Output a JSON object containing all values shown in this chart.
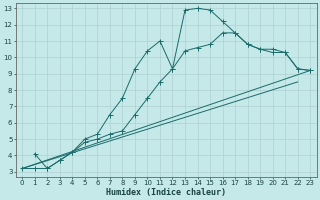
{
  "xlabel": "Humidex (Indice chaleur)",
  "bg_color": "#c5e8e8",
  "line_color": "#1a6b6b",
  "xlim": [
    -0.5,
    23.5
  ],
  "ylim": [
    2.7,
    13.3
  ],
  "xticks": [
    0,
    1,
    2,
    3,
    4,
    5,
    6,
    7,
    8,
    9,
    10,
    11,
    12,
    13,
    14,
    15,
    16,
    17,
    18,
    19,
    20,
    21,
    22,
    23
  ],
  "yticks": [
    3,
    4,
    5,
    6,
    7,
    8,
    9,
    10,
    11,
    12,
    13
  ],
  "grid_color": "#b0d0d0",
  "line1_x": [
    1,
    2,
    3,
    4,
    5,
    6,
    7,
    8,
    9,
    10,
    11,
    12,
    13,
    14,
    15,
    16,
    17,
    18,
    19,
    20,
    21,
    22,
    23
  ],
  "line1_y": [
    4.1,
    3.2,
    3.7,
    4.2,
    5.0,
    5.3,
    6.5,
    7.5,
    9.3,
    10.4,
    11.0,
    9.3,
    12.9,
    13.0,
    12.9,
    12.2,
    11.5,
    10.8,
    10.5,
    10.5,
    10.3,
    9.3,
    9.2
  ],
  "line2_x": [
    0,
    1,
    2,
    3,
    4,
    5,
    6,
    7,
    8,
    9,
    10,
    11,
    12,
    13,
    14,
    15,
    16,
    17,
    18,
    19,
    20,
    21,
    22,
    23
  ],
  "line2_y": [
    3.2,
    3.2,
    3.2,
    3.7,
    4.2,
    4.8,
    5.0,
    5.3,
    5.5,
    6.5,
    7.5,
    8.5,
    9.3,
    10.4,
    10.6,
    10.8,
    11.5,
    11.5,
    10.8,
    10.5,
    10.3,
    10.3,
    9.3,
    9.2
  ],
  "line3_x": [
    0,
    23
  ],
  "line3_y": [
    3.2,
    9.2
  ],
  "line4_x": [
    0,
    22
  ],
  "line4_y": [
    3.2,
    8.5
  ],
  "markersize": 2.0,
  "lw": 0.7
}
